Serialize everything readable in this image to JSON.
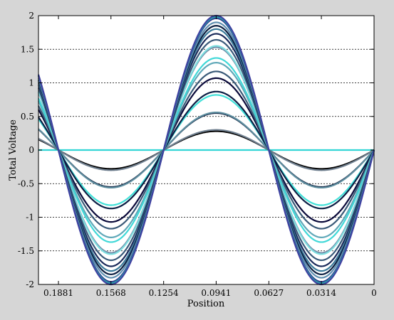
{
  "chart_data": {
    "type": "line",
    "xlabel": "Position",
    "ylabel": "Total Voltage",
    "xlim": [
      0.2,
      0
    ],
    "ylim": [
      -2,
      2
    ],
    "x_ticks": [
      0.1881,
      0.1568,
      0.1254,
      0.0941,
      0.0627,
      0.0314,
      0
    ],
    "x_tick_labels": [
      "0.1881",
      "0.1568",
      "0.1254",
      "0.0941",
      "0.0627",
      "0.0314",
      "0"
    ],
    "y_ticks": [
      2,
      1.5,
      1,
      0.5,
      0,
      -0.5,
      -1,
      -1.5,
      -2
    ],
    "y_tick_labels": [
      "2",
      "1.5",
      "1",
      "0.5",
      "0",
      "-0.5",
      "-1",
      "-1.5",
      "-2"
    ],
    "grid": "horizontal dashed",
    "wavelength": 0.1254,
    "series": [
      {
        "amplitude": 0,
        "color": "#33d6d6"
      },
      {
        "amplitude": 0.28,
        "color": "#000000"
      },
      {
        "amplitude": 0.3,
        "color": "#708090"
      },
      {
        "amplitude": 0.55,
        "color": "#0a1a3a"
      },
      {
        "amplitude": 0.56,
        "color": "#5f8fa0"
      },
      {
        "amplitude": 0.82,
        "color": "#40e0d8"
      },
      {
        "amplitude": 0.87,
        "color": "#0b1e44"
      },
      {
        "amplitude": 1.07,
        "color": "#0a0a3a"
      },
      {
        "amplitude": 1.17,
        "color": "#3a5a78"
      },
      {
        "amplitude": 1.3,
        "color": "#5fa8b8"
      },
      {
        "amplitude": 1.37,
        "color": "#40d8d8"
      },
      {
        "amplitude": 1.53,
        "color": "#6f8da8"
      },
      {
        "amplitude": 1.55,
        "color": "#7fdfe0"
      },
      {
        "amplitude": 1.64,
        "color": "#3a5a7a"
      },
      {
        "amplitude": 1.73,
        "color": "#1a2a5a"
      },
      {
        "amplitude": 1.8,
        "color": "#3a7a9a"
      },
      {
        "amplitude": 1.85,
        "color": "#0a1e40"
      },
      {
        "amplitude": 1.9,
        "color": "#5f8fb0"
      },
      {
        "amplitude": 1.96,
        "color": "#2d3a8c"
      },
      {
        "amplitude": 1.98,
        "color": "#2a9fa8"
      },
      {
        "amplitude": 2.0,
        "color": "#4040a0"
      }
    ]
  }
}
